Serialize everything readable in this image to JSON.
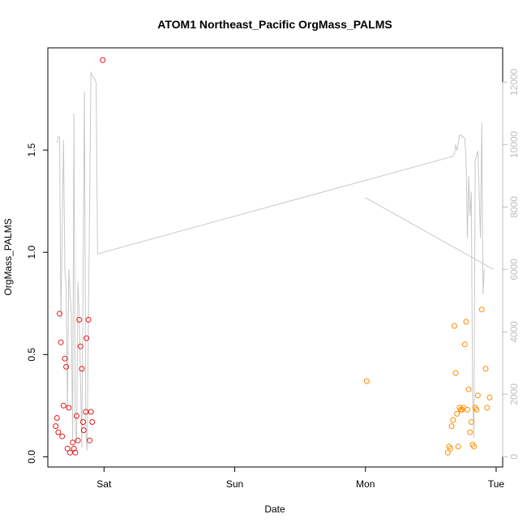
{
  "chart_data": {
    "type": "scatter",
    "title": "ATOM1 Northeast_Pacific OrgMass_PALMS",
    "xlabel": "Date",
    "ylabel": "OrgMass_PALMS",
    "x_unit": "days (0 = Sat 00:00)",
    "xlim": [
      -0.43,
      3.05
    ],
    "ylim": [
      -0.05,
      2.0
    ],
    "x_ticks": [
      {
        "value": 0,
        "label": "Sat"
      },
      {
        "value": 1,
        "label": "Sun"
      },
      {
        "value": 2,
        "label": "Mon"
      },
      {
        "value": 3,
        "label": "Tue"
      }
    ],
    "y_ticks": [
      {
        "value": 0.0,
        "label": "0.0"
      },
      {
        "value": 0.5,
        "label": "0.5"
      },
      {
        "value": 1.0,
        "label": "1.0"
      },
      {
        "value": 1.5,
        "label": "1.5"
      }
    ],
    "y2_ticks": [
      {
        "value": 0,
        "label": "0"
      },
      {
        "value": 2000,
        "label": "2000"
      },
      {
        "value": 4000,
        "label": "4000"
      },
      {
        "value": 6000,
        "label": "6000"
      },
      {
        "value": 8000,
        "label": "8000"
      },
      {
        "value": 10000,
        "label": "10000"
      },
      {
        "value": 12000,
        "label": "12000"
      }
    ],
    "y2lim": [
      -330,
      13100
    ],
    "grid": false,
    "colors": {
      "series_red": "#e31a1c",
      "series_orange": "#ff8c00",
      "altitude_line": "#c8c8c8",
      "axis": "#000000",
      "right_axis": "#bdbdbd"
    },
    "series": [
      {
        "color": "#e31a1c",
        "marker": "open-circle",
        "points": [
          [
            -0.37,
            0.15
          ],
          [
            -0.36,
            0.19
          ],
          [
            -0.35,
            0.12
          ],
          [
            -0.34,
            0.7
          ],
          [
            -0.33,
            0.56
          ],
          [
            -0.32,
            0.1
          ],
          [
            -0.31,
            0.25
          ],
          [
            -0.3,
            0.48
          ],
          [
            -0.29,
            0.44
          ],
          [
            -0.28,
            0.04
          ],
          [
            -0.27,
            0.24
          ],
          [
            -0.26,
            0.02
          ],
          [
            -0.24,
            0.07
          ],
          [
            -0.23,
            0.04
          ],
          [
            -0.22,
            0.02
          ],
          [
            -0.21,
            0.2
          ],
          [
            -0.2,
            0.08
          ],
          [
            -0.19,
            0.67
          ],
          [
            -0.18,
            0.54
          ],
          [
            -0.17,
            0.43
          ],
          [
            -0.16,
            0.17
          ],
          [
            -0.155,
            0.13
          ],
          [
            -0.14,
            0.22
          ],
          [
            -0.135,
            0.58
          ],
          [
            -0.12,
            0.67
          ],
          [
            -0.11,
            0.08
          ],
          [
            -0.1,
            0.22
          ],
          [
            -0.09,
            0.17
          ],
          [
            -0.01,
            1.94
          ]
        ]
      },
      {
        "color": "#ff8c00",
        "marker": "open-circle",
        "points": [
          [
            2.01,
            0.37
          ],
          [
            2.63,
            0.02
          ],
          [
            2.64,
            0.05
          ],
          [
            2.65,
            0.04
          ],
          [
            2.66,
            0.15
          ],
          [
            2.67,
            0.18
          ],
          [
            2.68,
            0.64
          ],
          [
            2.69,
            0.41
          ],
          [
            2.7,
            0.21
          ],
          [
            2.71,
            0.05
          ],
          [
            2.72,
            0.24
          ],
          [
            2.73,
            0.23
          ],
          [
            2.74,
            0.23
          ],
          [
            2.75,
            0.24
          ],
          [
            2.76,
            0.55
          ],
          [
            2.77,
            0.66
          ],
          [
            2.78,
            0.23
          ],
          [
            2.79,
            0.33
          ],
          [
            2.8,
            0.12
          ],
          [
            2.81,
            0.17
          ],
          [
            2.82,
            0.06
          ],
          [
            2.83,
            0.05
          ],
          [
            2.84,
            0.24
          ],
          [
            2.85,
            0.23
          ],
          [
            2.86,
            0.3
          ],
          [
            2.89,
            0.72
          ],
          [
            2.92,
            0.43
          ],
          [
            2.93,
            0.24
          ],
          [
            2.95,
            0.29
          ]
        ]
      }
    ],
    "altitude_line": {
      "axis": "right",
      "segments": [
        [
          [
            -0.36,
            10050
          ],
          [
            -0.35,
            10250
          ],
          [
            -0.34,
            10250
          ],
          [
            -0.33,
            4400
          ],
          [
            -0.31,
            10150
          ],
          [
            -0.3,
            6000
          ],
          [
            -0.29,
            5400
          ],
          [
            -0.28,
            1500
          ],
          [
            -0.27,
            6000
          ],
          [
            -0.25,
            4500
          ],
          [
            -0.24,
            500
          ],
          [
            -0.23,
            11000
          ],
          [
            -0.22,
            900
          ],
          [
            -0.21,
            500
          ],
          [
            -0.2,
            5600
          ],
          [
            -0.19,
            4600
          ],
          [
            -0.17,
            300
          ],
          [
            -0.15,
            11700
          ],
          [
            -0.14,
            900
          ],
          [
            -0.13,
            200
          ],
          [
            -0.1,
            12300
          ],
          [
            -0.06,
            12000
          ],
          [
            -0.05,
            6500
          ],
          [
            2.65,
            9600
          ],
          [
            2.66,
            9600
          ],
          [
            2.68,
            9700
          ],
          [
            2.69,
            10000
          ],
          [
            2.7,
            9800
          ],
          [
            2.72,
            10300
          ],
          [
            2.73,
            10300
          ],
          [
            2.76,
            10200
          ],
          [
            2.77,
            9500
          ],
          [
            2.78,
            7000
          ],
          [
            2.79,
            9000
          ],
          [
            2.8,
            7700
          ],
          [
            2.81,
            8500
          ],
          [
            2.82,
            2000
          ],
          [
            2.83,
            600
          ],
          [
            2.84,
            9500
          ],
          [
            2.86,
            9800
          ],
          [
            2.88,
            7000
          ],
          [
            2.89,
            10700
          ],
          [
            2.9,
            5200
          ],
          [
            2.91,
            6000
          ]
        ],
        [
          [
            2.0,
            8300
          ],
          [
            2.98,
            6000
          ]
        ]
      ]
    }
  }
}
